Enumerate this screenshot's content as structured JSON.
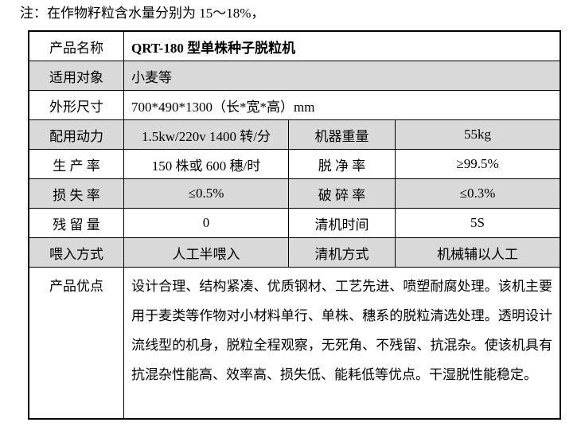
{
  "note": "注：在作物籽粒含水量分别为 15～18%，",
  "colors": {
    "row_shade": "#d9d9d9",
    "border": "#000000",
    "background": "#ffffff",
    "text": "#000000"
  },
  "table": {
    "rows": [
      {
        "label": "产品名称",
        "value": "QRT-180 型单株种子脱粒机",
        "shaded": false,
        "bold_value": true
      },
      {
        "label": "适用对象",
        "value": "小麦等",
        "shaded": true
      },
      {
        "label": "外形尺寸",
        "value": "700*490*1300（长*宽*高）mm",
        "shaded": false
      },
      {
        "label": "配用动力",
        "value": "1.5kw/220v 1400 转/分",
        "label2": "机器重量",
        "value2": "55kg",
        "shaded": true
      },
      {
        "label": "生 产 率",
        "value": "150 株或 600 穗/时",
        "label2": "脱 净 率",
        "value2": "≥99.5%",
        "shaded": false
      },
      {
        "label": "损 失 率",
        "value": "≤0.5%",
        "label2": "破 碎 率",
        "value2": "≤0.3%",
        "shaded": true
      },
      {
        "label": "残 留 量",
        "value": "0",
        "label2": "清机时间",
        "value2": "5S",
        "shaded": false
      },
      {
        "label": "喂入方式",
        "value": "人工半喂入",
        "label2": "清机方式",
        "value2": "机械辅以人工",
        "shaded": true
      },
      {
        "label": "产品优点",
        "value": "设计合理、结构紧凑、优质钢材、工艺先进、喷塑耐腐处理。该机主要用于麦类等作物对小材料单行、单株、穗系的脱粒清选处理。透明设计流线型的机身，脱粒全程观察，无死角、不残留、抗混杂。使该机具有抗混杂性能高、效率高、损失低、能耗低等优点。干湿脱性能稳定。",
        "shaded": false
      }
    ]
  }
}
